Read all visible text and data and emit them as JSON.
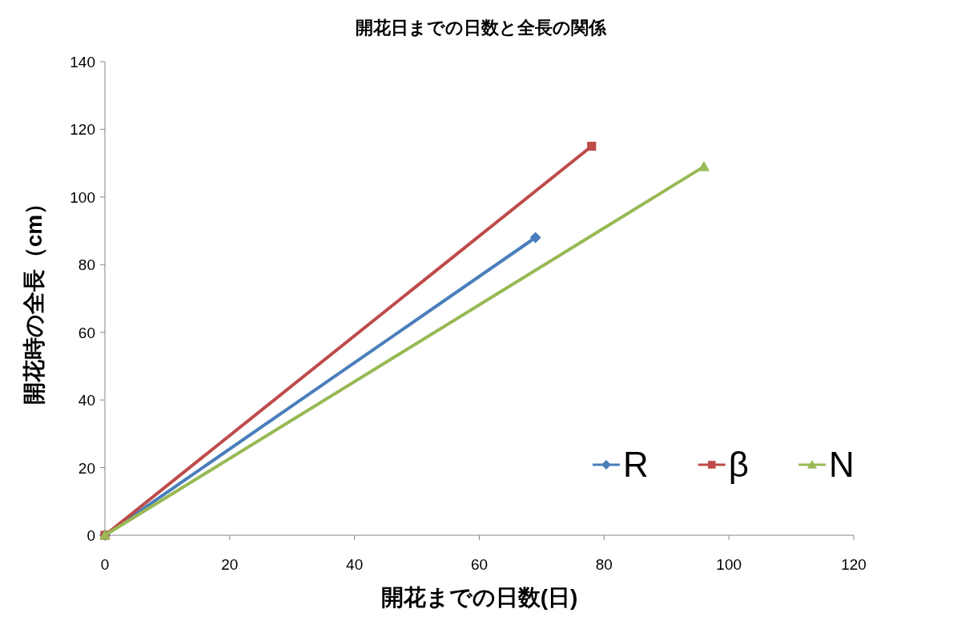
{
  "chart_data": {
    "type": "line",
    "title": "開花日までの日数と全長の関係",
    "xlabel": "開花までの日数(日)",
    "ylabel": "開花時の全長（cm）",
    "xlim": [
      0,
      120
    ],
    "xticks": [
      0,
      20,
      40,
      60,
      80,
      100,
      120
    ],
    "ylim": [
      0,
      140
    ],
    "yticks": [
      0,
      20,
      40,
      60,
      80,
      100,
      120,
      140
    ],
    "grid": false,
    "legend": "bottom right",
    "series": [
      {
        "name": "R",
        "color": "#4a7ebb",
        "marker": "diamond",
        "x": [
          0,
          69
        ],
        "values": [
          0,
          88
        ]
      },
      {
        "name": "β",
        "color": "#be4b48",
        "marker": "square",
        "x": [
          0,
          78
        ],
        "values": [
          0,
          115
        ]
      },
      {
        "name": "N",
        "color": "#98b954",
        "marker": "triangle",
        "x": [
          0,
          96
        ],
        "values": [
          0,
          109
        ]
      }
    ]
  }
}
